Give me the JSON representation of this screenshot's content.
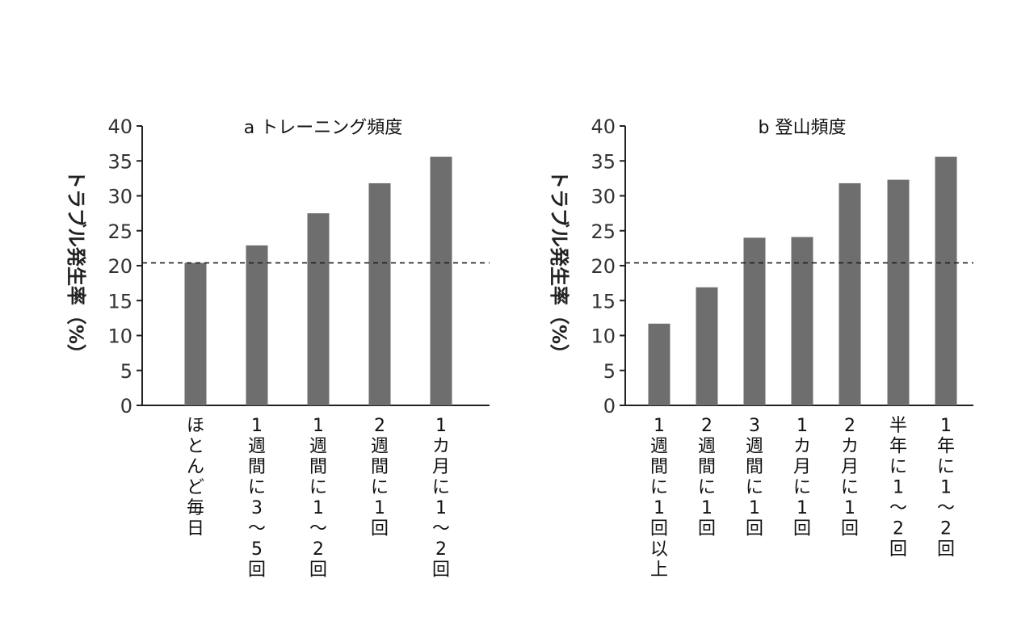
{
  "chart_data": [
    {
      "type": "bar",
      "title": "a トレーニング頻度",
      "ylabel": "トラブル発生率（%）",
      "ylim": [
        0,
        40
      ],
      "yticks": [
        0,
        5,
        10,
        15,
        20,
        25,
        30,
        35,
        40
      ],
      "reference_line": 20.4,
      "categories": [
        "ほとんど毎日",
        "1週間に3～5回",
        "1週間に1～2回",
        "2週間に1回",
        "1カ月に1～2回"
      ],
      "values": [
        20.4,
        22.9,
        27.5,
        31.8,
        35.6
      ],
      "bar_color": "#6e6e6e"
    },
    {
      "type": "bar",
      "title": "b 登山頻度",
      "ylabel": "トラブル発生率（%）",
      "ylim": [
        0,
        40
      ],
      "yticks": [
        0,
        5,
        10,
        15,
        20,
        25,
        30,
        35,
        40
      ],
      "reference_line": 20.4,
      "categories": [
        "1週間に1回以上",
        "2週間に1回",
        "3週間に1回",
        "1カ月に1回",
        "2カ月に1回",
        "半年に1～2回",
        "1年に1～2回"
      ],
      "values": [
        11.7,
        16.9,
        24.0,
        24.1,
        31.8,
        32.3,
        35.6
      ],
      "bar_color": "#6e6e6e"
    }
  ]
}
